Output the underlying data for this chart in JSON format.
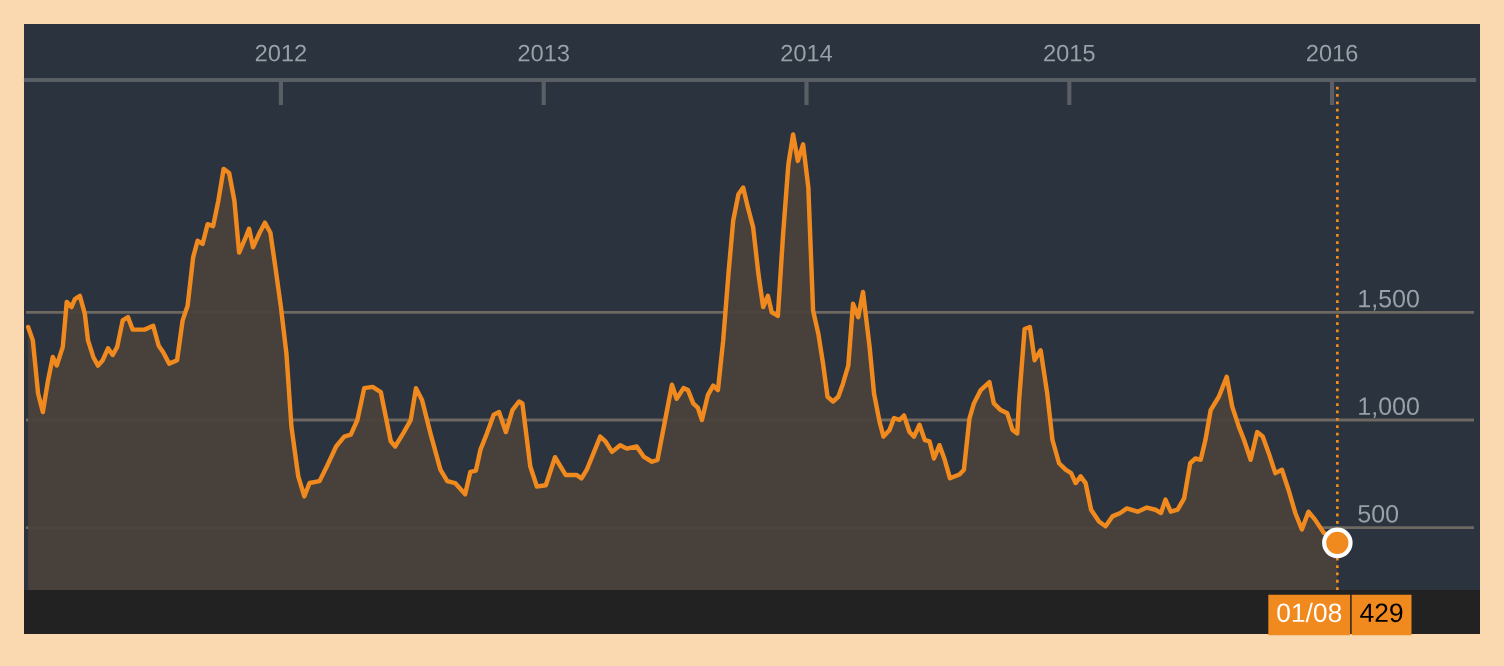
{
  "chart_data": {
    "type": "area",
    "x": [
      2011.038,
      2011.056,
      2011.076,
      2011.094,
      2011.114,
      2011.132,
      2011.147,
      2011.17,
      2011.185,
      2011.203,
      2011.216,
      2011.235,
      2011.254,
      2011.266,
      2011.286,
      2011.304,
      2011.322,
      2011.342,
      2011.36,
      2011.377,
      2011.398,
      2011.418,
      2011.436,
      2011.481,
      2011.514,
      2011.535,
      2011.552,
      2011.575,
      2011.605,
      2011.626,
      2011.645,
      2011.666,
      2011.683,
      2011.702,
      2011.721,
      2011.742,
      2011.762,
      2011.782,
      2011.803,
      2011.823,
      2011.841,
      2011.863,
      2011.879,
      2011.894,
      2011.919,
      2011.939,
      2011.96,
      2011.979,
      2012.0,
      2012.021,
      2012.04,
      2012.066,
      2012.089,
      2012.109,
      2012.147,
      2012.177,
      2012.21,
      2012.241,
      2012.266,
      2012.291,
      2012.317,
      2012.349,
      2012.38,
      2012.418,
      2012.435,
      2012.468,
      2012.494,
      2012.514,
      2012.537,
      2012.569,
      2012.607,
      2012.633,
      2012.663,
      2012.701,
      2012.721,
      2012.742,
      2012.759,
      2012.784,
      2012.81,
      2012.83,
      2012.856,
      2012.881,
      2012.906,
      2012.919,
      2012.949,
      2012.974,
      2013.008,
      2013.043,
      2013.084,
      2013.126,
      2013.144,
      2013.164,
      2013.215,
      2013.235,
      2013.26,
      2013.291,
      2013.316,
      2013.354,
      2013.38,
      2013.412,
      2013.433,
      2013.463,
      2013.488,
      2013.506,
      2013.532,
      2013.549,
      2013.569,
      2013.587,
      2013.602,
      2013.625,
      2013.645,
      2013.663,
      2013.683,
      2013.703,
      2013.721,
      2013.741,
      2013.759,
      2013.777,
      2013.797,
      2013.817,
      2013.835,
      2013.853,
      2013.868,
      2013.891,
      2013.911,
      2013.931,
      2013.949,
      2013.967,
      2013.987,
      2014.007,
      2014.025,
      2014.045,
      2014.063,
      2014.08,
      2014.101,
      2014.121,
      2014.139,
      2014.159,
      2014.177,
      2014.197,
      2014.215,
      2014.24,
      2014.257,
      2014.278,
      2014.293,
      2014.316,
      2014.333,
      2014.354,
      2014.371,
      2014.392,
      2014.409,
      2014.43,
      2014.45,
      2014.468,
      2014.485,
      2014.506,
      2014.526,
      2014.546,
      2014.582,
      2014.599,
      2014.62,
      2014.637,
      2014.663,
      2014.696,
      2014.713,
      2014.739,
      2014.764,
      2014.784,
      2014.802,
      2014.809,
      2014.83,
      2014.85,
      2014.868,
      2014.891,
      2014.916,
      2014.936,
      2014.961,
      2014.986,
      2015.007,
      2015.024,
      2015.043,
      2015.062,
      2015.083,
      2015.113,
      2015.138,
      2015.164,
      2015.194,
      2015.219,
      2015.26,
      2015.295,
      2015.328,
      2015.349,
      2015.366,
      2015.386,
      2015.412,
      2015.437,
      2015.46,
      2015.48,
      2015.5,
      2015.518,
      2015.538,
      2015.569,
      2015.599,
      2015.62,
      2015.645,
      2015.665,
      2015.69,
      2015.715,
      2015.736,
      2015.759,
      2015.784,
      2015.809,
      2015.834,
      2015.86,
      2015.885,
      2015.91,
      2015.935,
      2015.969,
      2015.999,
      2016.02
    ],
    "series": [
      {
        "color": "#f08a1e",
        "marker": "none",
        "values": [
          1432,
          1370,
          1123,
          1037,
          1185,
          1293,
          1253,
          1340,
          1549,
          1525,
          1562,
          1577,
          1493,
          1370,
          1293,
          1253,
          1278,
          1333,
          1302,
          1340,
          1463,
          1478,
          1420,
          1420,
          1438,
          1345,
          1315,
          1262,
          1278,
          1463,
          1531,
          1756,
          1833,
          1818,
          1910,
          1901,
          2019,
          2167,
          2148,
          2019,
          1778,
          1840,
          1889,
          1803,
          1870,
          1917,
          1870,
          1710,
          1525,
          1308,
          969,
          738,
          645,
          707,
          716,
          790,
          877,
          923,
          932,
          1000,
          1148,
          1154,
          1130,
          901,
          877,
          944,
          1000,
          1148,
          1093,
          938,
          769,
          716,
          707,
          655,
          759,
          765,
          861,
          938,
          1025,
          1037,
          944,
          1046,
          1086,
          1077,
          784,
          691,
          697,
          827,
          744,
          744,
          729,
          769,
          923,
          901,
          852,
          883,
          867,
          877,
          830,
          806,
          815,
          1006,
          1164,
          1099,
          1148,
          1139,
          1077,
          1056,
          1000,
          1117,
          1160,
          1139,
          1370,
          1679,
          1926,
          2049,
          2080,
          1988,
          1895,
          1679,
          1525,
          1577,
          1500,
          1484,
          1864,
          2188,
          2327,
          2204,
          2281,
          2080,
          1509,
          1401,
          1262,
          1108,
          1086,
          1108,
          1170,
          1253,
          1540,
          1478,
          1595,
          1340,
          1123,
          991,
          923,
          954,
          1009,
          1000,
          1021,
          944,
          923,
          978,
          907,
          901,
          821,
          883,
          815,
          729,
          747,
          769,
          1006,
          1077,
          1139,
          1176,
          1077,
          1046,
          1031,
          954,
          938,
          1093,
          1423,
          1432,
          1278,
          1324,
          1123,
          907,
          799,
          769,
          753,
          707,
          738,
          707,
          583,
          528,
          506,
          552,
          568,
          589,
          574,
          593,
          583,
          568,
          630,
          574,
          583,
          636,
          799,
          821,
          815,
          907,
          1046,
          1108,
          1201,
          1062,
          969,
          907,
          815,
          944,
          923,
          846,
          753,
          769,
          676,
          568,
          491,
          574,
          537,
          475,
          460,
          429
        ]
      },
      {
        "type": "scatter",
        "marker": "circle",
        "x": [
          2016.02
        ],
        "color": "#f08a1e",
        "values": [
          429
        ]
      }
    ],
    "xlim": [
      2011.03,
      2016.54
    ],
    "ylim": [
      210,
      2580
    ],
    "xticks": [
      2012,
      2013,
      2014,
      2015,
      2016
    ],
    "yticks": [
      500,
      {
        "value": 1000,
        "label": "1,000"
      },
      {
        "value": 1500,
        "label": "1,500"
      }
    ],
    "grid": "y",
    "legend": false,
    "line_style": "solid",
    "ref_lines": [
      {
        "axis": "x",
        "value": 2016.02,
        "color": "#f08a1e",
        "line_style": "dotted"
      }
    ],
    "annotations": [
      "01/08",
      "429"
    ]
  }
}
